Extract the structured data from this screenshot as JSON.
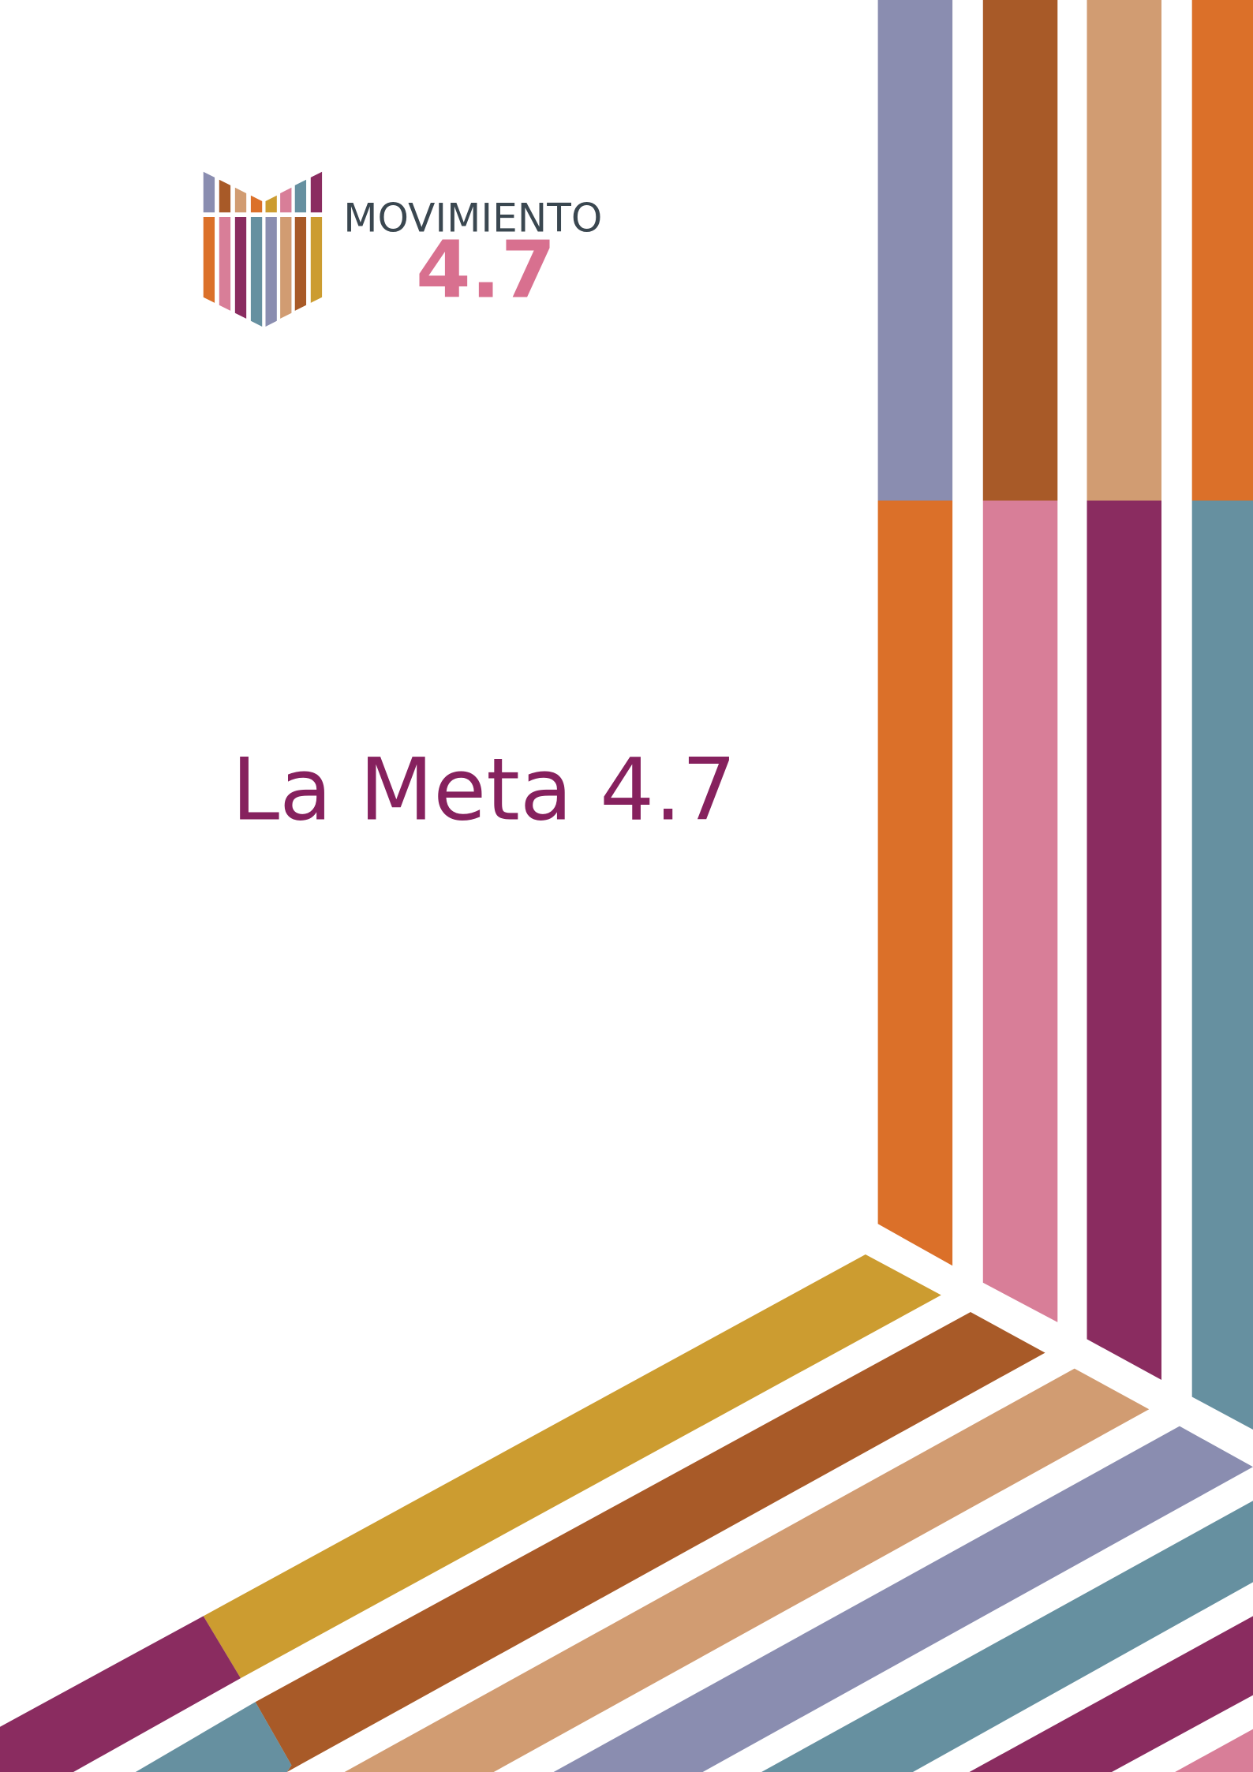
{
  "logo": {
    "name": "MOVIMIENTO",
    "number": "4.7"
  },
  "title": "La Meta 4.7"
}
